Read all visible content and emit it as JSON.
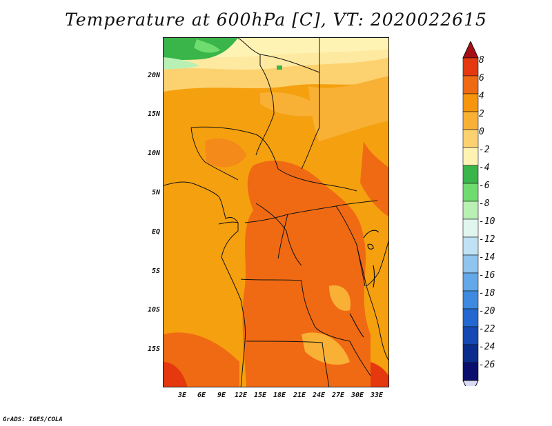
{
  "title": "Temperature at 600hPa [C], VT: 2020022615",
  "footer": "GrADS: IGES/COLA",
  "map": {
    "lat_labels": [
      "20N",
      "15N",
      "10N",
      "5N",
      "EQ",
      "5S",
      "10S",
      "15S"
    ],
    "lon_labels": [
      "3E",
      "6E",
      "9E",
      "12E",
      "15E",
      "18E",
      "21E",
      "24E",
      "27E",
      "30E",
      "33E"
    ]
  },
  "colorbar": {
    "labels": [
      "8",
      "6",
      "4",
      "2",
      "0",
      "-2",
      "-4",
      "-6",
      "-8",
      "-10",
      "-12",
      "-14",
      "-16",
      "-18",
      "-20",
      "-22",
      "-24",
      "-26"
    ],
    "colors": [
      "#a50f15",
      "#e6380f",
      "#f06a14",
      "#f7960c",
      "#f8b135",
      "#fcd270",
      "#fff3b4",
      "#39b54a",
      "#6fdc6f",
      "#b9f0b4",
      "#e2f6f0",
      "#bfe2f4",
      "#8ec4ee",
      "#63a8e8",
      "#3d8ae0",
      "#2268d0",
      "#1448b4",
      "#0a2c8c",
      "#0a0f6e",
      "#d9dbf5"
    ]
  }
}
